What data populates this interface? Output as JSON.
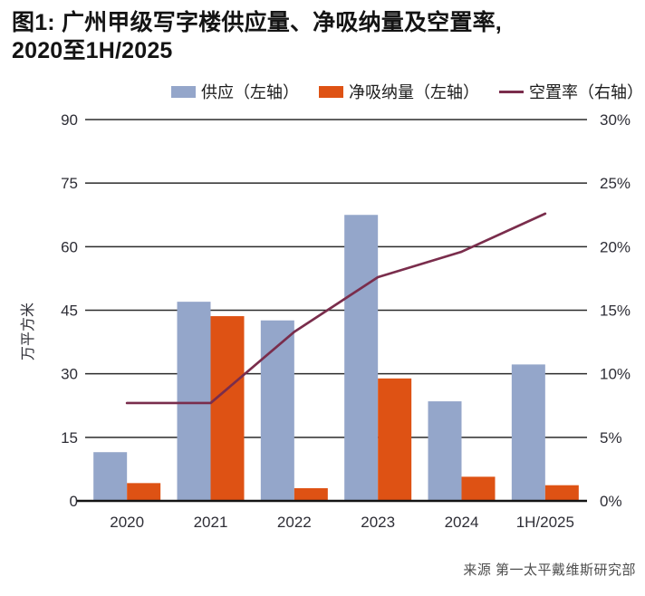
{
  "title": {
    "line1": "图1: 广州甲级写字楼供应量、净吸纳量及空置率,",
    "line2": "2020至1H/2025"
  },
  "legend": [
    {
      "label": "供应（左轴）",
      "marker": "square",
      "color": "#94A6CA"
    },
    {
      "label": "净吸纳量（左轴）",
      "marker": "square",
      "color": "#DE5214"
    },
    {
      "label": "空置率（右轴）",
      "marker": "line",
      "color": "#7A2D4C"
    }
  ],
  "source": "来源 第一太平戴维斯研究部",
  "colors": {
    "supply_bar": "#94A6CA",
    "absorption_bar": "#DE5214",
    "vacancy_line": "#7A2D4C",
    "gridline": "#2b2b2b",
    "axis_text": "#2e2e36"
  },
  "chart_data": {
    "type": "bar",
    "subtype": "grouped-bars-with-line",
    "categories": [
      "2020",
      "2021",
      "2022",
      "2023",
      "2024",
      "1H/2025"
    ],
    "series": [
      {
        "name": "供应（左轴）",
        "type": "bar",
        "axis": "left",
        "color": "#94A6CA",
        "values": [
          11.5,
          47.0,
          42.6,
          67.5,
          23.5,
          32.2
        ]
      },
      {
        "name": "净吸纳量（左轴）",
        "type": "bar",
        "axis": "left",
        "color": "#DE5214",
        "values": [
          4.2,
          43.6,
          3.0,
          28.9,
          5.7,
          3.7
        ]
      },
      {
        "name": "空置率（右轴）",
        "type": "line",
        "axis": "right",
        "color": "#7A2D4C",
        "values": [
          7.7,
          7.7,
          13.3,
          17.6,
          19.6,
          22.6
        ]
      }
    ],
    "left_axis": {
      "label": "万平方米",
      "min": 0,
      "max": 90,
      "ticks": [
        0,
        15,
        30,
        45,
        60,
        75,
        90
      ]
    },
    "right_axis": {
      "label": "",
      "min": 0,
      "max": 30,
      "ticks": [
        0,
        5,
        10,
        15,
        20,
        25,
        30
      ],
      "suffix": "%"
    },
    "grid": true,
    "legend_position": "top-right"
  }
}
